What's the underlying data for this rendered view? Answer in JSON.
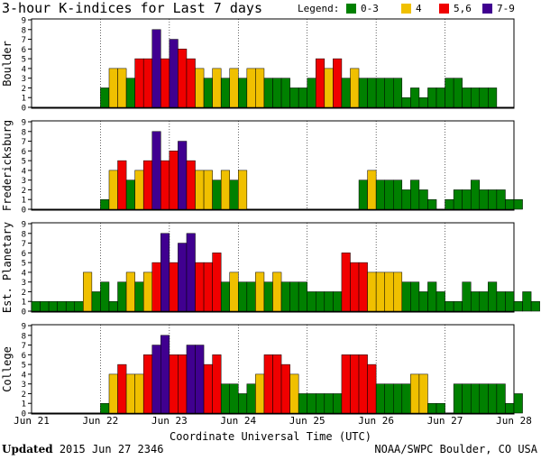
{
  "chart_data": {
    "type": "bar",
    "title": "3-hour K-indices for Last 7 days",
    "legend": {
      "label": "Legend:",
      "entries": [
        {
          "label": "0-3",
          "color": "#008000"
        },
        {
          "label": "4",
          "color": "#f0c000"
        },
        {
          "label": "5,6",
          "color": "#f00000"
        },
        {
          "label": "7-9",
          "color": "#400090"
        }
      ]
    },
    "xlabel": "Coordinate Universal Time (UTC)",
    "x_ticks": [
      "Jun 21",
      "Jun 22",
      "Jun 23",
      "Jun 24",
      "Jun 25",
      "Jun 26",
      "Jun 27",
      "Jun 28"
    ],
    "ylim": [
      0,
      9
    ],
    "y_ticks": [
      "0",
      "1",
      "2",
      "3",
      "4",
      "5",
      "6",
      "7",
      "8",
      "9"
    ],
    "series": [
      {
        "name": "Boulder",
        "values": [
          0,
          0,
          0,
          0,
          0,
          0,
          0,
          0,
          2,
          4,
          4,
          3,
          5,
          5,
          8,
          5,
          7,
          6,
          5,
          4,
          3,
          4,
          3,
          4,
          3,
          4,
          4,
          3,
          3,
          3,
          2,
          2,
          3,
          5,
          4,
          5,
          3,
          4,
          3,
          3,
          3,
          3,
          3,
          1,
          2,
          1,
          2,
          2,
          3,
          3,
          2,
          2,
          2,
          2,
          0,
          0
        ]
      },
      {
        "name": "Fredericksburg",
        "values": [
          0,
          0,
          0,
          0,
          0,
          0,
          0,
          0,
          1,
          4,
          5,
          3,
          4,
          5,
          8,
          5,
          6,
          7,
          5,
          4,
          4,
          3,
          4,
          3,
          4,
          0,
          0,
          0,
          0,
          0,
          0,
          0,
          0,
          0,
          0,
          0,
          0,
          0,
          3,
          4,
          3,
          3,
          3,
          2,
          3,
          2,
          1,
          0,
          1,
          2,
          2,
          3,
          2,
          2,
          2,
          1,
          1,
          0
        ]
      },
      {
        "name": "Est. Planetary",
        "values": [
          1,
          1,
          1,
          1,
          1,
          1,
          4,
          2,
          3,
          1,
          3,
          4,
          3,
          4,
          5,
          8,
          5,
          7,
          8,
          5,
          5,
          6,
          3,
          4,
          3,
          3,
          4,
          3,
          4,
          3,
          3,
          3,
          2,
          2,
          2,
          2,
          6,
          5,
          5,
          4,
          4,
          4,
          4,
          3,
          3,
          2,
          3,
          2,
          1,
          1,
          3,
          2,
          2,
          3,
          2,
          2,
          1,
          2,
          1
        ]
      },
      {
        "name": "College",
        "values": [
          0,
          0,
          0,
          0,
          0,
          0,
          0,
          0,
          1,
          4,
          5,
          4,
          4,
          6,
          7,
          8,
          6,
          6,
          7,
          7,
          5,
          6,
          3,
          3,
          2,
          3,
          4,
          6,
          6,
          5,
          4,
          2,
          2,
          2,
          2,
          2,
          6,
          6,
          6,
          5,
          3,
          3,
          3,
          3,
          4,
          4,
          1,
          1,
          0,
          3,
          3,
          3,
          3,
          3,
          3,
          1,
          2
        ]
      }
    ]
  },
  "footer": {
    "updated_label": "Updated",
    "updated_value": "2015 Jun 27 2346",
    "source": "NOAA/SWPC Boulder, CO USA"
  }
}
